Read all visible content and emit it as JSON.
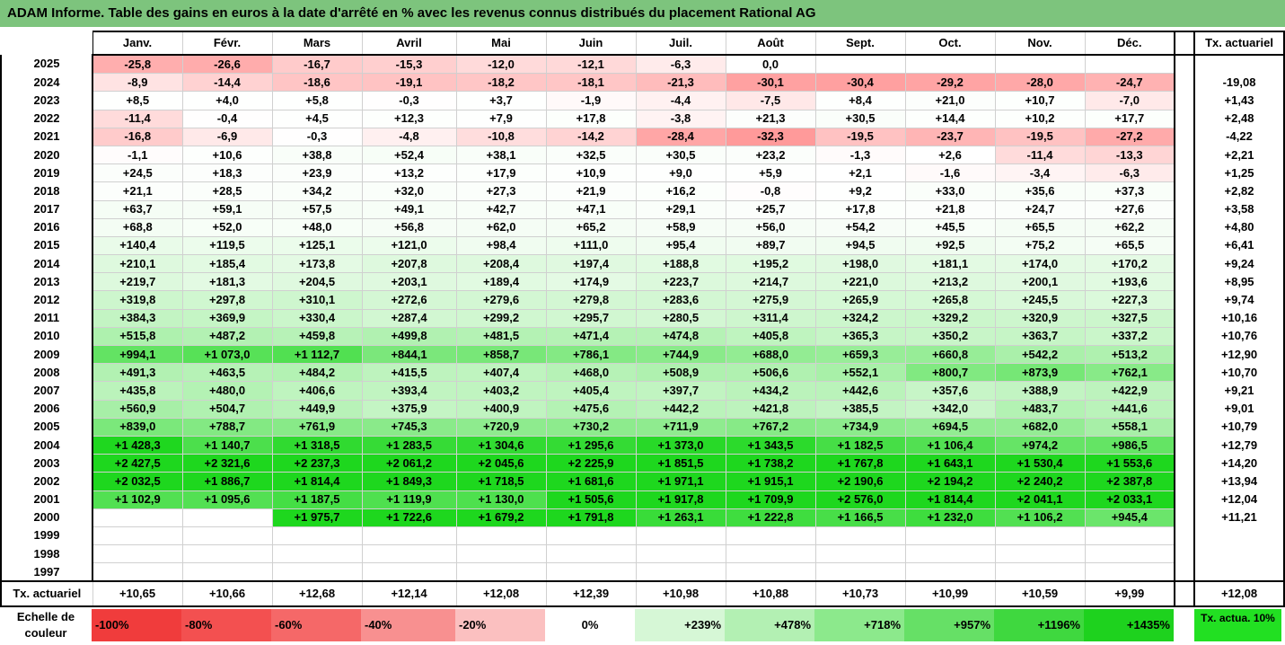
{
  "title": "ADAM Informe. Table des gains en euros à la date d'arrêté en % avec les revenus connus distribués du placement Rational AG",
  "months": [
    "Janv.",
    "Févr.",
    "Mars",
    "Avril",
    "Mai",
    "Juin",
    "Juil.",
    "Août",
    "Sept.",
    "Oct.",
    "Nov.",
    "Déc."
  ],
  "tx_header": "Tx. actuariel",
  "rows": [
    {
      "year": "2025",
      "vals": [
        "-25,8",
        "-26,6",
        "-16,7",
        "-15,3",
        "-12,0",
        "-12,1",
        "-6,3",
        "0,0",
        "",
        "",
        "",
        ""
      ],
      "tx": ""
    },
    {
      "year": "2024",
      "vals": [
        "-8,9",
        "-14,4",
        "-18,6",
        "-19,1",
        "-18,2",
        "-18,1",
        "-21,3",
        "-30,1",
        "-30,4",
        "-29,2",
        "-28,0",
        "-24,7"
      ],
      "tx": "-19,08"
    },
    {
      "year": "2023",
      "vals": [
        "+8,5",
        "+4,0",
        "+5,8",
        "-0,3",
        "+3,7",
        "-1,9",
        "-4,4",
        "-7,5",
        "+8,4",
        "+21,0",
        "+10,7",
        "-7,0"
      ],
      "tx": "+1,43"
    },
    {
      "year": "2022",
      "vals": [
        "-11,4",
        "-0,4",
        "+4,5",
        "+12,3",
        "+7,9",
        "+17,8",
        "-3,8",
        "+21,3",
        "+30,5",
        "+14,4",
        "+10,2",
        "+17,7"
      ],
      "tx": "+2,48"
    },
    {
      "year": "2021",
      "vals": [
        "-16,8",
        "-6,9",
        "-0,3",
        "-4,8",
        "-10,8",
        "-14,2",
        "-28,4",
        "-32,3",
        "-19,5",
        "-23,7",
        "-19,5",
        "-27,2"
      ],
      "tx": "-4,22"
    },
    {
      "year": "2020",
      "vals": [
        "-1,1",
        "+10,6",
        "+38,8",
        "+52,4",
        "+38,1",
        "+32,5",
        "+30,5",
        "+23,2",
        "-1,3",
        "+2,6",
        "-11,4",
        "-13,3"
      ],
      "tx": "+2,21"
    },
    {
      "year": "2019",
      "vals": [
        "+24,5",
        "+18,3",
        "+23,9",
        "+13,2",
        "+17,9",
        "+10,9",
        "+9,0",
        "+5,9",
        "+2,1",
        "-1,6",
        "-3,4",
        "-6,3"
      ],
      "tx": "+1,25"
    },
    {
      "year": "2018",
      "vals": [
        "+21,1",
        "+28,5",
        "+34,2",
        "+32,0",
        "+27,3",
        "+21,9",
        "+16,2",
        "-0,8",
        "+9,2",
        "+33,0",
        "+35,6",
        "+37,3"
      ],
      "tx": "+2,82"
    },
    {
      "year": "2017",
      "vals": [
        "+63,7",
        "+59,1",
        "+57,5",
        "+49,1",
        "+42,7",
        "+47,1",
        "+29,1",
        "+25,7",
        "+17,8",
        "+21,8",
        "+24,7",
        "+27,6"
      ],
      "tx": "+3,58"
    },
    {
      "year": "2016",
      "vals": [
        "+68,8",
        "+52,0",
        "+48,0",
        "+56,8",
        "+62,0",
        "+65,2",
        "+58,9",
        "+56,0",
        "+54,2",
        "+45,5",
        "+65,5",
        "+62,2"
      ],
      "tx": "+4,80"
    },
    {
      "year": "2015",
      "vals": [
        "+140,4",
        "+119,5",
        "+125,1",
        "+121,0",
        "+98,4",
        "+111,0",
        "+95,4",
        "+89,7",
        "+94,5",
        "+92,5",
        "+75,2",
        "+65,5"
      ],
      "tx": "+6,41"
    },
    {
      "year": "2014",
      "vals": [
        "+210,1",
        "+185,4",
        "+173,8",
        "+207,8",
        "+208,4",
        "+197,4",
        "+188,8",
        "+195,2",
        "+198,0",
        "+181,1",
        "+174,0",
        "+170,2"
      ],
      "tx": "+9,24"
    },
    {
      "year": "2013",
      "vals": [
        "+219,7",
        "+181,3",
        "+204,5",
        "+203,1",
        "+189,4",
        "+174,9",
        "+223,7",
        "+214,7",
        "+221,0",
        "+213,2",
        "+200,1",
        "+193,6"
      ],
      "tx": "+8,95"
    },
    {
      "year": "2012",
      "vals": [
        "+319,8",
        "+297,8",
        "+310,1",
        "+272,6",
        "+279,6",
        "+279,8",
        "+283,6",
        "+275,9",
        "+265,9",
        "+265,8",
        "+245,5",
        "+227,3"
      ],
      "tx": "+9,74"
    },
    {
      "year": "2011",
      "vals": [
        "+384,3",
        "+369,9",
        "+330,4",
        "+287,4",
        "+299,2",
        "+295,7",
        "+280,5",
        "+311,4",
        "+324,2",
        "+329,2",
        "+320,9",
        "+327,5"
      ],
      "tx": "+10,16"
    },
    {
      "year": "2010",
      "vals": [
        "+515,8",
        "+487,2",
        "+459,8",
        "+499,8",
        "+481,5",
        "+471,4",
        "+474,8",
        "+405,8",
        "+365,3",
        "+350,2",
        "+363,7",
        "+337,2"
      ],
      "tx": "+10,76"
    },
    {
      "year": "2009",
      "vals": [
        "+994,1",
        "+1 073,0",
        "+1 112,7",
        "+844,1",
        "+858,7",
        "+786,1",
        "+744,9",
        "+688,0",
        "+659,3",
        "+660,8",
        "+542,2",
        "+513,2"
      ],
      "tx": "+12,90"
    },
    {
      "year": "2008",
      "vals": [
        "+491,3",
        "+463,5",
        "+484,2",
        "+415,5",
        "+407,4",
        "+468,0",
        "+508,9",
        "+506,6",
        "+552,1",
        "+800,7",
        "+873,9",
        "+762,1"
      ],
      "tx": "+10,70"
    },
    {
      "year": "2007",
      "vals": [
        "+435,8",
        "+480,0",
        "+406,6",
        "+393,4",
        "+403,2",
        "+405,4",
        "+397,7",
        "+434,2",
        "+442,6",
        "+357,6",
        "+388,9",
        "+422,9"
      ],
      "tx": "+9,21"
    },
    {
      "year": "2006",
      "vals": [
        "+560,9",
        "+504,7",
        "+449,9",
        "+375,9",
        "+400,9",
        "+475,6",
        "+442,2",
        "+421,8",
        "+385,5",
        "+342,0",
        "+483,7",
        "+441,6"
      ],
      "tx": "+9,01"
    },
    {
      "year": "2005",
      "vals": [
        "+839,0",
        "+788,7",
        "+761,9",
        "+745,3",
        "+720,9",
        "+730,2",
        "+711,9",
        "+767,2",
        "+734,9",
        "+694,5",
        "+682,0",
        "+558,1"
      ],
      "tx": "+10,79"
    },
    {
      "year": "2004",
      "vals": [
        "+1 428,3",
        "+1 140,7",
        "+1 318,5",
        "+1 283,5",
        "+1 304,6",
        "+1 295,6",
        "+1 373,0",
        "+1 343,5",
        "+1 182,5",
        "+1 106,4",
        "+974,2",
        "+986,5"
      ],
      "tx": "+12,79"
    },
    {
      "year": "2003",
      "vals": [
        "+2 427,5",
        "+2 321,6",
        "+2 237,3",
        "+2 061,2",
        "+2 045,6",
        "+2 225,9",
        "+1 851,5",
        "+1 738,2",
        "+1 767,8",
        "+1 643,1",
        "+1 530,4",
        "+1 553,6"
      ],
      "tx": "+14,20"
    },
    {
      "year": "2002",
      "vals": [
        "+2 032,5",
        "+1 886,7",
        "+1 814,4",
        "+1 849,3",
        "+1 718,5",
        "+1 681,6",
        "+1 971,1",
        "+1 915,1",
        "+2 190,6",
        "+2 194,2",
        "+2 240,2",
        "+2 387,8"
      ],
      "tx": "+13,94"
    },
    {
      "year": "2001",
      "vals": [
        "+1 102,9",
        "+1 095,6",
        "+1 187,5",
        "+1 119,9",
        "+1 130,0",
        "+1 505,6",
        "+1 917,8",
        "+1 709,9",
        "+2 576,0",
        "+1 814,4",
        "+2 041,1",
        "+2 033,1"
      ],
      "tx": "+12,04"
    },
    {
      "year": "2000",
      "vals": [
        "",
        "",
        "+1 975,7",
        "+1 722,6",
        "+1 679,2",
        "+1 791,8",
        "+1 263,1",
        "+1 222,8",
        "+1 166,5",
        "+1 232,0",
        "+1 106,2",
        "+945,4"
      ],
      "tx": "+11,21"
    },
    {
      "year": "1999",
      "vals": [
        "",
        "",
        "",
        "",
        "",
        "",
        "",
        "",
        "",
        "",
        "",
        ""
      ],
      "tx": ""
    },
    {
      "year": "1998",
      "vals": [
        "",
        "",
        "",
        "",
        "",
        "",
        "",
        "",
        "",
        "",
        "",
        ""
      ],
      "tx": ""
    },
    {
      "year": "1997",
      "vals": [
        "",
        "",
        "",
        "",
        "",
        "",
        "",
        "",
        "",
        "",
        "",
        ""
      ],
      "tx": ""
    }
  ],
  "footer": {
    "label": "Tx. actuariel",
    "vals": [
      "+10,65",
      "+10,66",
      "+12,68",
      "+12,14",
      "+12,08",
      "+12,39",
      "+10,98",
      "+10,88",
      "+10,73",
      "+10,99",
      "+10,59",
      "+9,99"
    ],
    "tx": "+12,08"
  },
  "legend": {
    "label": "Echelle de couleur",
    "items": [
      {
        "text": "-100%",
        "color": "#f03c3c",
        "align": "left"
      },
      {
        "text": "-80%",
        "color": "#f35050",
        "align": "left"
      },
      {
        "text": "-60%",
        "color": "#f56868",
        "align": "left"
      },
      {
        "text": "-40%",
        "color": "#f89090",
        "align": "left"
      },
      {
        "text": "-20%",
        "color": "#fbc0c0",
        "align": "left"
      },
      {
        "text": "0%",
        "color": "#ffffff",
        "align": "center"
      },
      {
        "text": "+239%",
        "color": "#d6f7d6",
        "align": "right"
      },
      {
        "text": "+478%",
        "color": "#b3f0b3",
        "align": "right"
      },
      {
        "text": "+718%",
        "color": "#8ce98c",
        "align": "right"
      },
      {
        "text": "+957%",
        "color": "#66e066",
        "align": "right"
      },
      {
        "text": "+1196%",
        "color": "#3fd83f",
        "align": "right"
      },
      {
        "text": "+1435%",
        "color": "#1ed21e",
        "align": "right"
      }
    ],
    "tx_text": "Tx. actua. 10%",
    "tx_color": "#22e022"
  },
  "colors": {
    "title_bg": "#7dc47d",
    "neg_strong": "#f35050",
    "pos_strong": "#1ed21e"
  }
}
